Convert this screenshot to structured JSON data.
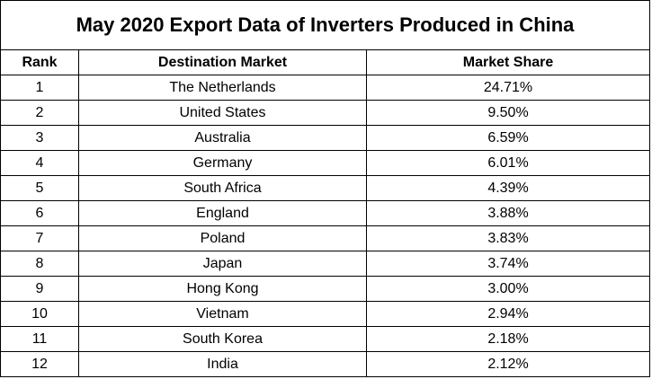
{
  "table": {
    "title": "May 2020 Export Data of Inverters Produced in China",
    "headers": {
      "rank": "Rank",
      "market": "Destination Market",
      "share": "Market Share"
    },
    "rows": [
      {
        "rank": "1",
        "market": "The Netherlands",
        "share": "24.71%"
      },
      {
        "rank": "2",
        "market": "United States",
        "share": "9.50%"
      },
      {
        "rank": "3",
        "market": "Australia",
        "share": "6.59%"
      },
      {
        "rank": "4",
        "market": "Germany",
        "share": "6.01%"
      },
      {
        "rank": "5",
        "market": "South Africa",
        "share": "4.39%"
      },
      {
        "rank": "6",
        "market": "England",
        "share": "3.88%"
      },
      {
        "rank": "7",
        "market": "Poland",
        "share": "3.83%"
      },
      {
        "rank": "8",
        "market": "Japan",
        "share": "3.74%"
      },
      {
        "rank": "9",
        "market": "Hong Kong",
        "share": "3.00%"
      },
      {
        "rank": "10",
        "market": "Vietnam",
        "share": "2.94%"
      },
      {
        "rank": "11",
        "market": "South Korea",
        "share": "2.18%"
      },
      {
        "rank": "12",
        "market": "India",
        "share": "2.12%"
      }
    ]
  }
}
